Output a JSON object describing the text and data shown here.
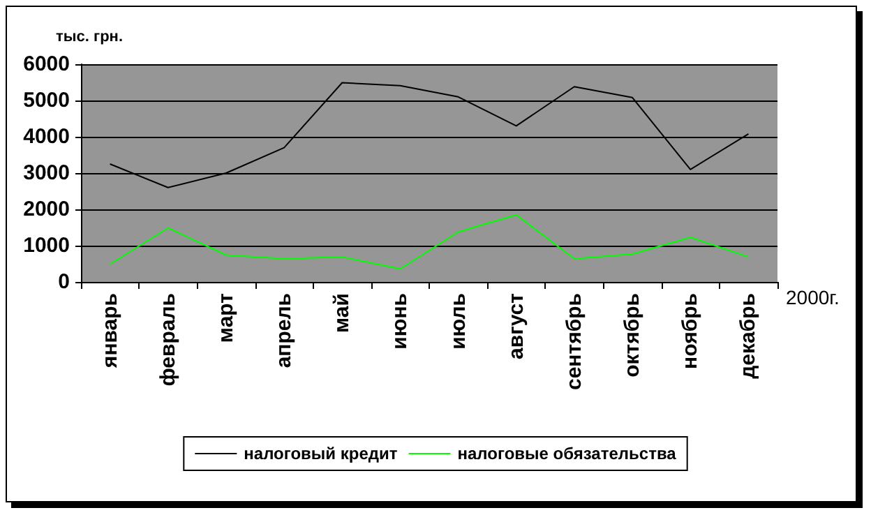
{
  "chart_data": {
    "type": "line",
    "ylabel": "тыс. грн.",
    "xlabel": "2000г.",
    "categories": [
      "январь",
      "февраль",
      "март",
      "апрель",
      "май",
      "июнь",
      "июль",
      "август",
      "сентябрь",
      "октябрь",
      "ноябрь",
      "декабрь"
    ],
    "series": [
      {
        "name": "налоговый кредит",
        "color": "#000000",
        "values": [
          3250,
          2600,
          3000,
          3700,
          5490,
          5410,
          5100,
          4300,
          5380,
          5080,
          3100,
          4080
        ]
      },
      {
        "name": "налоговые обязательства",
        "color": "#00ff00",
        "values": [
          490,
          1490,
          740,
          640,
          690,
          360,
          1380,
          1850,
          640,
          770,
          1230,
          690
        ]
      }
    ],
    "ylim": [
      0,
      6000
    ],
    "yticks": [
      0,
      1000,
      2000,
      3000,
      4000,
      5000,
      6000
    ],
    "grid": "y",
    "legend": "bottom",
    "marker": "none",
    "line_style": "solid"
  }
}
